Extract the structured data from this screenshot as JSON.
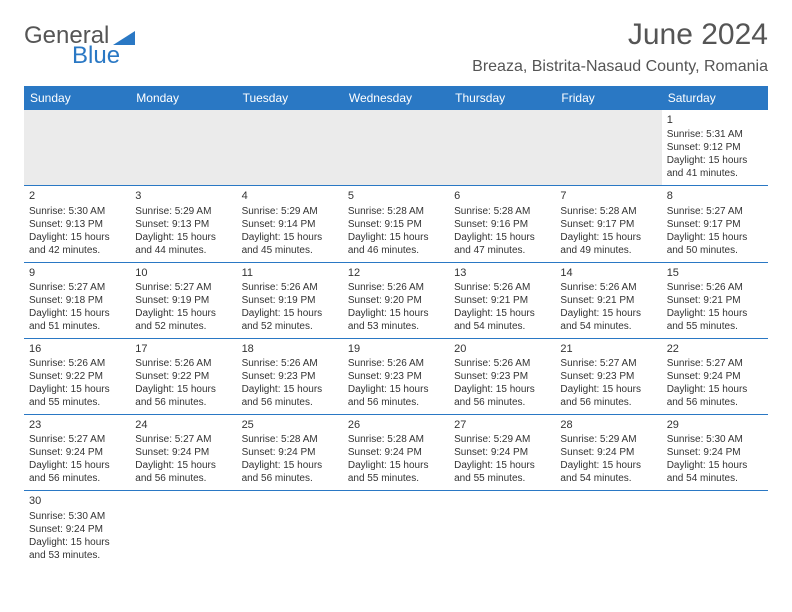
{
  "logo": {
    "general": "General",
    "blue": "Blue"
  },
  "title": "June 2024",
  "location": "Breaza, Bistrita-Nasaud County, Romania",
  "weekdays": [
    "Sunday",
    "Monday",
    "Tuesday",
    "Wednesday",
    "Thursday",
    "Friday",
    "Saturday"
  ],
  "colors": {
    "headerBg": "#2a78c4",
    "headerText": "#ffffff",
    "rowBorder": "#2a78c4",
    "blankBg": "#ebebeb"
  },
  "startWeekday": 6,
  "days": [
    {
      "n": "1",
      "sunrise": "Sunrise: 5:31 AM",
      "sunset": "Sunset: 9:12 PM",
      "d1": "Daylight: 15 hours",
      "d2": "and 41 minutes."
    },
    {
      "n": "2",
      "sunrise": "Sunrise: 5:30 AM",
      "sunset": "Sunset: 9:13 PM",
      "d1": "Daylight: 15 hours",
      "d2": "and 42 minutes."
    },
    {
      "n": "3",
      "sunrise": "Sunrise: 5:29 AM",
      "sunset": "Sunset: 9:13 PM",
      "d1": "Daylight: 15 hours",
      "d2": "and 44 minutes."
    },
    {
      "n": "4",
      "sunrise": "Sunrise: 5:29 AM",
      "sunset": "Sunset: 9:14 PM",
      "d1": "Daylight: 15 hours",
      "d2": "and 45 minutes."
    },
    {
      "n": "5",
      "sunrise": "Sunrise: 5:28 AM",
      "sunset": "Sunset: 9:15 PM",
      "d1": "Daylight: 15 hours",
      "d2": "and 46 minutes."
    },
    {
      "n": "6",
      "sunrise": "Sunrise: 5:28 AM",
      "sunset": "Sunset: 9:16 PM",
      "d1": "Daylight: 15 hours",
      "d2": "and 47 minutes."
    },
    {
      "n": "7",
      "sunrise": "Sunrise: 5:28 AM",
      "sunset": "Sunset: 9:17 PM",
      "d1": "Daylight: 15 hours",
      "d2": "and 49 minutes."
    },
    {
      "n": "8",
      "sunrise": "Sunrise: 5:27 AM",
      "sunset": "Sunset: 9:17 PM",
      "d1": "Daylight: 15 hours",
      "d2": "and 50 minutes."
    },
    {
      "n": "9",
      "sunrise": "Sunrise: 5:27 AM",
      "sunset": "Sunset: 9:18 PM",
      "d1": "Daylight: 15 hours",
      "d2": "and 51 minutes."
    },
    {
      "n": "10",
      "sunrise": "Sunrise: 5:27 AM",
      "sunset": "Sunset: 9:19 PM",
      "d1": "Daylight: 15 hours",
      "d2": "and 52 minutes."
    },
    {
      "n": "11",
      "sunrise": "Sunrise: 5:26 AM",
      "sunset": "Sunset: 9:19 PM",
      "d1": "Daylight: 15 hours",
      "d2": "and 52 minutes."
    },
    {
      "n": "12",
      "sunrise": "Sunrise: 5:26 AM",
      "sunset": "Sunset: 9:20 PM",
      "d1": "Daylight: 15 hours",
      "d2": "and 53 minutes."
    },
    {
      "n": "13",
      "sunrise": "Sunrise: 5:26 AM",
      "sunset": "Sunset: 9:21 PM",
      "d1": "Daylight: 15 hours",
      "d2": "and 54 minutes."
    },
    {
      "n": "14",
      "sunrise": "Sunrise: 5:26 AM",
      "sunset": "Sunset: 9:21 PM",
      "d1": "Daylight: 15 hours",
      "d2": "and 54 minutes."
    },
    {
      "n": "15",
      "sunrise": "Sunrise: 5:26 AM",
      "sunset": "Sunset: 9:21 PM",
      "d1": "Daylight: 15 hours",
      "d2": "and 55 minutes."
    },
    {
      "n": "16",
      "sunrise": "Sunrise: 5:26 AM",
      "sunset": "Sunset: 9:22 PM",
      "d1": "Daylight: 15 hours",
      "d2": "and 55 minutes."
    },
    {
      "n": "17",
      "sunrise": "Sunrise: 5:26 AM",
      "sunset": "Sunset: 9:22 PM",
      "d1": "Daylight: 15 hours",
      "d2": "and 56 minutes."
    },
    {
      "n": "18",
      "sunrise": "Sunrise: 5:26 AM",
      "sunset": "Sunset: 9:23 PM",
      "d1": "Daylight: 15 hours",
      "d2": "and 56 minutes."
    },
    {
      "n": "19",
      "sunrise": "Sunrise: 5:26 AM",
      "sunset": "Sunset: 9:23 PM",
      "d1": "Daylight: 15 hours",
      "d2": "and 56 minutes."
    },
    {
      "n": "20",
      "sunrise": "Sunrise: 5:26 AM",
      "sunset": "Sunset: 9:23 PM",
      "d1": "Daylight: 15 hours",
      "d2": "and 56 minutes."
    },
    {
      "n": "21",
      "sunrise": "Sunrise: 5:27 AM",
      "sunset": "Sunset: 9:23 PM",
      "d1": "Daylight: 15 hours",
      "d2": "and 56 minutes."
    },
    {
      "n": "22",
      "sunrise": "Sunrise: 5:27 AM",
      "sunset": "Sunset: 9:24 PM",
      "d1": "Daylight: 15 hours",
      "d2": "and 56 minutes."
    },
    {
      "n": "23",
      "sunrise": "Sunrise: 5:27 AM",
      "sunset": "Sunset: 9:24 PM",
      "d1": "Daylight: 15 hours",
      "d2": "and 56 minutes."
    },
    {
      "n": "24",
      "sunrise": "Sunrise: 5:27 AM",
      "sunset": "Sunset: 9:24 PM",
      "d1": "Daylight: 15 hours",
      "d2": "and 56 minutes."
    },
    {
      "n": "25",
      "sunrise": "Sunrise: 5:28 AM",
      "sunset": "Sunset: 9:24 PM",
      "d1": "Daylight: 15 hours",
      "d2": "and 56 minutes."
    },
    {
      "n": "26",
      "sunrise": "Sunrise: 5:28 AM",
      "sunset": "Sunset: 9:24 PM",
      "d1": "Daylight: 15 hours",
      "d2": "and 55 minutes."
    },
    {
      "n": "27",
      "sunrise": "Sunrise: 5:29 AM",
      "sunset": "Sunset: 9:24 PM",
      "d1": "Daylight: 15 hours",
      "d2": "and 55 minutes."
    },
    {
      "n": "28",
      "sunrise": "Sunrise: 5:29 AM",
      "sunset": "Sunset: 9:24 PM",
      "d1": "Daylight: 15 hours",
      "d2": "and 54 minutes."
    },
    {
      "n": "29",
      "sunrise": "Sunrise: 5:30 AM",
      "sunset": "Sunset: 9:24 PM",
      "d1": "Daylight: 15 hours",
      "d2": "and 54 minutes."
    },
    {
      "n": "30",
      "sunrise": "Sunrise: 5:30 AM",
      "sunset": "Sunset: 9:24 PM",
      "d1": "Daylight: 15 hours",
      "d2": "and 53 minutes."
    }
  ]
}
